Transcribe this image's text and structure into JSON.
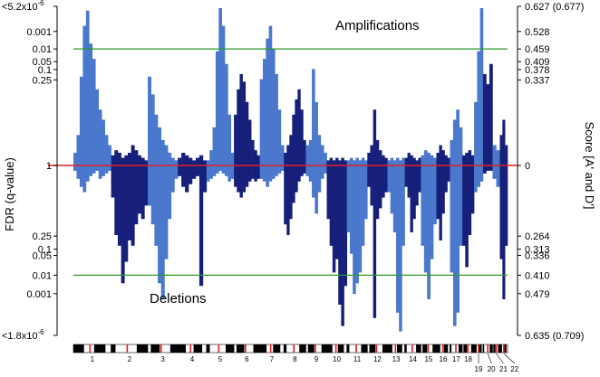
{
  "chart_data": {
    "type": "bar",
    "title": "",
    "ylabel_left": "FDR (q-value)",
    "ylabel_right": "Score [A' and D']",
    "annotations": [
      "Amplifications",
      "Deletions"
    ],
    "left_ticks": [
      {
        "label": "<5.2x10",
        "sup": "-6",
        "score": 0.627
      },
      {
        "label": "0.001",
        "score": 0.528
      },
      {
        "label": "0.01",
        "score": 0.459
      },
      {
        "label": "0.05",
        "score": 0.409
      },
      {
        "label": "0.1",
        "score": 0.378
      },
      {
        "label": "0.25",
        "score": 0.337
      },
      {
        "label": "1",
        "score": 0
      },
      {
        "label": "0.25",
        "score": -0.264
      },
      {
        "label": "0.1",
        "score": -0.313
      },
      {
        "label": "0.05",
        "score": -0.336
      },
      {
        "label": "0.01",
        "score": -0.41
      },
      {
        "label": "0.001",
        "score": -0.479
      },
      {
        "label": "<1.8x10",
        "sup": "-6",
        "score": -0.635
      }
    ],
    "right_ticks": [
      {
        "label": "0.627 (0.677)",
        "score": 0.627
      },
      {
        "label": "0.528",
        "score": 0.528
      },
      {
        "label": "0.459",
        "score": 0.459
      },
      {
        "label": "0.409",
        "score": 0.409
      },
      {
        "label": "0.378",
        "score": 0.378
      },
      {
        "label": "0.337",
        "score": 0.337
      },
      {
        "label": "0",
        "score": 0
      },
      {
        "label": "0.264",
        "score": -0.264
      },
      {
        "label": "0.313",
        "score": -0.313
      },
      {
        "label": "0.336",
        "score": -0.336
      },
      {
        "label": "0.410",
        "score": -0.41
      },
      {
        "label": "0.479",
        "score": -0.479
      },
      {
        "label": "0.635 (0.709)",
        "score": -0.635
      }
    ],
    "significance_threshold": 0.459,
    "deletion_threshold": -0.41,
    "ylim": [
      -0.635,
      0.627
    ],
    "colors": {
      "odd_chromosome": "#4a78cc",
      "even_chromosome": "#16207a",
      "threshold_line": "#2f9a2f",
      "baseline": "#e02020"
    },
    "chromosomes": [
      {
        "label": "1",
        "size": 249,
        "amp": [
          0.05,
          0.12,
          0.35,
          0.55,
          0.61,
          0.48,
          0.42,
          0.3,
          0.22,
          0.18,
          0.12,
          0.08
        ],
        "del": [
          0.02,
          0.05,
          0.08,
          0.1,
          0.06,
          0.04,
          0.03,
          0.02,
          0.05,
          0.04,
          0.03,
          0.02
        ]
      },
      {
        "label": "2",
        "size": 242,
        "amp": [
          0.04,
          0.06,
          0.05,
          0.03,
          0.04,
          0.05,
          0.08,
          0.06,
          0.04,
          0.03,
          0.02
        ],
        "del": [
          0.12,
          0.26,
          0.3,
          0.44,
          0.36,
          0.28,
          0.3,
          0.22,
          0.18,
          0.2,
          0.15
        ]
      },
      {
        "label": "3",
        "size": 198,
        "amp": [
          0.35,
          0.28,
          0.2,
          0.15,
          0.1,
          0.08,
          0.05,
          0.03,
          0.02
        ],
        "del": [
          0.15,
          0.22,
          0.3,
          0.44,
          0.5,
          0.35,
          0.2,
          0.1,
          0.05
        ]
      },
      {
        "label": "4",
        "size": 190,
        "amp": [
          0.03,
          0.05,
          0.04,
          0.03,
          0.02,
          0.03,
          0.04,
          0.02
        ],
        "del": [
          0.04,
          0.08,
          0.1,
          0.07,
          0.05,
          0.04,
          0.45,
          0.1
        ]
      },
      {
        "label": "5",
        "size": 181,
        "amp": [
          0.02,
          0.06,
          0.15,
          0.45,
          0.62,
          0.55,
          0.4,
          0.2,
          0.05
        ],
        "del": [
          0.06,
          0.05,
          0.04,
          0.03,
          0.02,
          0.03,
          0.04,
          0.06,
          0.05
        ]
      },
      {
        "label": "6",
        "size": 171,
        "amp": [
          0.2,
          0.3,
          0.36,
          0.33,
          0.25,
          0.18,
          0.1,
          0.06,
          0.04
        ],
        "del": [
          0.08,
          0.1,
          0.12,
          0.1,
          0.08,
          0.06,
          0.05,
          0.06,
          0.05
        ]
      },
      {
        "label": "7",
        "size": 159,
        "amp": [
          0.34,
          0.42,
          0.5,
          0.55,
          0.46,
          0.36,
          0.22,
          0.08
        ],
        "del": [
          0.05,
          0.06,
          0.08,
          0.06,
          0.05,
          0.04,
          0.03,
          0.02
        ]
      },
      {
        "label": "8",
        "size": 145,
        "amp": [
          0.05,
          0.08,
          0.12,
          0.2,
          0.26,
          0.3,
          0.22,
          0.1
        ],
        "del": [
          0.22,
          0.26,
          0.2,
          0.14,
          0.1,
          0.06,
          0.04,
          0.03
        ]
      },
      {
        "label": "9",
        "size": 138,
        "amp": [
          0.08,
          0.1,
          0.38,
          0.25,
          0.12,
          0.08,
          0.05
        ],
        "del": [
          0.04,
          0.06,
          0.12,
          0.18,
          0.1,
          0.05,
          0.03
        ]
      },
      {
        "label": "10",
        "size": 133,
        "amp": [
          0.02,
          0.03,
          0.02,
          0.03,
          0.02,
          0.03,
          0.02
        ],
        "del": [
          0.2,
          0.3,
          0.4,
          0.35,
          0.52,
          0.6,
          0.45
        ]
      },
      {
        "label": "11",
        "size": 135,
        "amp": [
          0.02,
          0.03,
          0.02,
          0.03,
          0.02,
          0.03,
          0.02
        ],
        "del": [
          0.25,
          0.33,
          0.48,
          0.44,
          0.4,
          0.3,
          0.2
        ]
      },
      {
        "label": "12",
        "size": 133,
        "amp": [
          0.05,
          0.08,
          0.22,
          0.1,
          0.06,
          0.04,
          0.03
        ],
        "del": [
          0.08,
          0.15,
          0.57,
          0.2,
          0.16,
          0.12,
          0.1
        ]
      },
      {
        "label": "13",
        "size": 114,
        "amp": [
          0.02,
          0.03,
          0.02,
          0.03,
          0.02,
          0.03
        ],
        "del": [
          0.1,
          0.18,
          0.25,
          0.55,
          0.62,
          0.3
        ]
      },
      {
        "label": "14",
        "size": 107,
        "amp": [
          0.03,
          0.05,
          0.04,
          0.03,
          0.02,
          0.03
        ],
        "del": [
          0.08,
          0.12,
          0.25,
          0.2,
          0.15,
          0.1
        ]
      },
      {
        "label": "15",
        "size": 102,
        "amp": [
          0.04,
          0.06,
          0.05,
          0.04,
          0.03
        ],
        "del": [
          0.3,
          0.4,
          0.5,
          0.35,
          0.22
        ]
      },
      {
        "label": "16",
        "size": 90,
        "amp": [
          0.05,
          0.08,
          0.06,
          0.04,
          0.03
        ],
        "del": [
          0.2,
          0.28,
          0.18,
          0.1,
          0.06
        ]
      },
      {
        "label": "17",
        "size": 81,
        "amp": [
          0.1,
          0.18,
          0.22,
          0.15
        ],
        "del": [
          0.4,
          0.6,
          0.55,
          0.3
        ]
      },
      {
        "label": "18",
        "size": 78,
        "amp": [
          0.04,
          0.05,
          0.06,
          0.04
        ],
        "del": [
          0.3,
          0.38,
          0.26,
          0.18
        ]
      },
      {
        "label": "19",
        "size": 59,
        "amp": [
          0.25,
          0.45,
          0.62
        ],
        "del": [
          0.1,
          0.08,
          0.06
        ]
      },
      {
        "label": "20",
        "size": 63,
        "amp": [
          0.36,
          0.32,
          0.4
        ],
        "del": [
          0.03,
          0.02,
          0.02
        ]
      },
      {
        "label": "21",
        "size": 48,
        "amp": [
          0.08,
          0.06
        ],
        "del": [
          0.05,
          0.08
        ]
      },
      {
        "label": "22",
        "size": 51,
        "amp": [
          0.12,
          0.18,
          0.08
        ],
        "del": [
          0.35,
          0.5,
          0.3
        ]
      }
    ]
  }
}
